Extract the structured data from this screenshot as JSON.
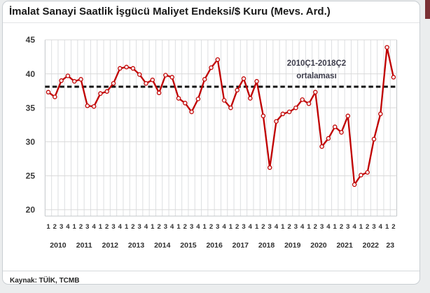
{
  "card": {
    "title": "İmalat Sanayi Saatlik İşgücü Maliyet Endeksi/$ Kuru (Mevs. Ard.)",
    "source_label": "Kaynak: TÜİK, TCMB"
  },
  "chart_data": {
    "type": "line",
    "title": "İmalat Sanayi Saatlik İşgücü Maliyet Endeksi/$ Kuru (Mevs. Ard.)",
    "xlabel": "",
    "ylabel": "",
    "ylim": [
      20,
      45
    ],
    "yticks": [
      45,
      40,
      35,
      30,
      25,
      20
    ],
    "grid": true,
    "legend": "none",
    "x": {
      "years": [
        {
          "label": "2010",
          "quarters": 4
        },
        {
          "label": "2011",
          "quarters": 4
        },
        {
          "label": "2012",
          "quarters": 4
        },
        {
          "label": "2013",
          "quarters": 4
        },
        {
          "label": "2014",
          "quarters": 4
        },
        {
          "label": "2015",
          "quarters": 4
        },
        {
          "label": "2016",
          "quarters": 4
        },
        {
          "label": "2017",
          "quarters": 4
        },
        {
          "label": "2018",
          "quarters": 4
        },
        {
          "label": "2019",
          "quarters": 4
        },
        {
          "label": "2020",
          "quarters": 4
        },
        {
          "label": "2021",
          "quarters": 4
        },
        {
          "label": "2022",
          "quarters": 4
        },
        {
          "label": "23",
          "quarters": 2
        }
      ]
    },
    "series": [
      {
        "name": "İmalat sanayi saatlik işgücü maliyet endeksi / $ kuru",
        "color": "#C00000",
        "marker": "circle-open",
        "values": [
          37.3,
          36.6,
          39.0,
          39.7,
          38.9,
          39.2,
          35.3,
          35.2,
          37.1,
          37.4,
          38.6,
          40.8,
          41.0,
          40.8,
          39.9,
          38.6,
          39.1,
          37.2,
          39.8,
          39.5,
          36.4,
          35.7,
          34.4,
          36.3,
          39.2,
          40.9,
          42.1,
          36.1,
          35.0,
          37.6,
          39.3,
          36.4,
          38.9,
          33.8,
          26.2,
          33.0,
          34.1,
          34.4,
          35.0,
          36.2,
          35.6,
          37.3,
          29.3,
          30.5,
          32.2,
          31.4,
          33.8,
          23.7,
          25.1,
          25.5,
          30.4,
          34.1,
          43.9,
          39.5
        ]
      }
    ],
    "average_line": {
      "label_line1": "2010Ç1-2018Ç2",
      "label_line2": "ortalaması",
      "value": 38.1,
      "color": "#141414",
      "style": "dashed"
    }
  }
}
